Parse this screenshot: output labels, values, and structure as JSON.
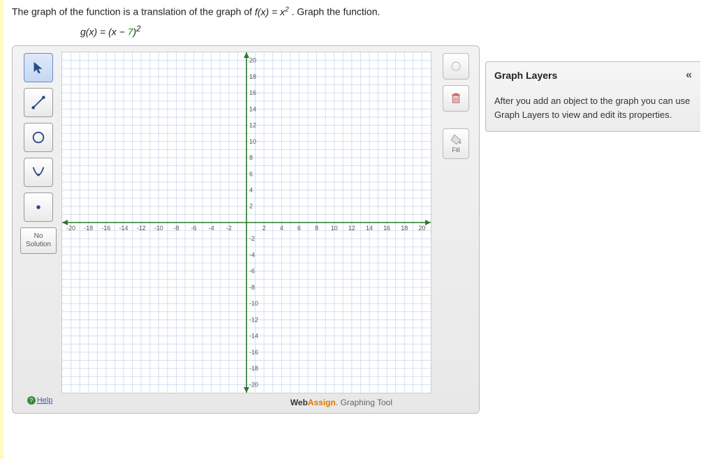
{
  "question": {
    "text_before": "The graph of the function is a translation of the graph of ",
    "fx": "f(x) = x",
    "fx_sup": "2",
    "text_after": ". Graph the function.",
    "formula_lhs": "g(x) = (x − ",
    "formula_num": "7",
    "formula_rhs": ")",
    "formula_sup": "2"
  },
  "toolbar": {
    "pointer": "pointer",
    "line": "line",
    "circle": "circle",
    "parabola": "parabola",
    "point": "point",
    "no_solution_l1": "No",
    "no_solution_l2": "Solution",
    "help": "Help"
  },
  "side": {
    "fill_label": "Fill"
  },
  "graph": {
    "xmin": -21,
    "xmax": 21,
    "ymin": -21,
    "ymax": 21,
    "grid_step": 1,
    "label_step": 2,
    "axis_color": "#2a7a2a",
    "grid_color": "#d0dff0",
    "label_color": "#555555",
    "label_fontsize": 9
  },
  "branding": {
    "web": "Web",
    "assign": "Assign",
    "suffix": ". Graphing Tool"
  },
  "layers": {
    "title": "Graph Layers",
    "body": "After you add an object to the graph you can use Graph Layers to view and edit its properties."
  }
}
